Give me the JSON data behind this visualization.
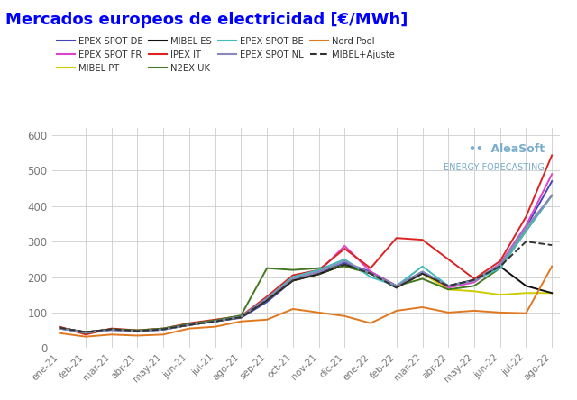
{
  "title": "Mercados europeos de electricidad [€/MWh]",
  "x_labels": [
    "ene-21",
    "feb-21",
    "mar-21",
    "abr-21",
    "may-21",
    "jun-21",
    "jul-21",
    "ago-21",
    "sep-21",
    "oct-21",
    "nov-21",
    "dic-21",
    "ene-22",
    "feb-22",
    "mar-22",
    "abr-22",
    "may-22",
    "jun-22",
    "jul-22",
    "ago-22"
  ],
  "ylim": [
    0,
    620
  ],
  "yticks": [
    0,
    100,
    200,
    300,
    400,
    500,
    600
  ],
  "series": {
    "EPEX SPOT DE": {
      "color": "#4444bb",
      "values": [
        55,
        45,
        52,
        48,
        52,
        65,
        75,
        85,
        130,
        190,
        210,
        240,
        215,
        175,
        215,
        175,
        190,
        235,
        340,
        470
      ]
    },
    "IPEX IT": {
      "color": "#dd2222",
      "values": [
        60,
        38,
        55,
        50,
        55,
        70,
        80,
        90,
        145,
        205,
        220,
        280,
        225,
        310,
        305,
        250,
        195,
        245,
        370,
        543
      ]
    },
    "Nord Pool": {
      "color": "#e07820",
      "values": [
        42,
        32,
        38,
        35,
        38,
        55,
        60,
        75,
        80,
        110,
        100,
        90,
        70,
        105,
        115,
        100,
        105,
        100,
        98,
        230
      ]
    },
    "EPEX SPOT FR": {
      "color": "#dd44cc",
      "values": [
        55,
        44,
        51,
        47,
        52,
        65,
        75,
        88,
        140,
        195,
        215,
        288,
        215,
        175,
        210,
        170,
        185,
        238,
        345,
        490
      ]
    },
    "N2EX UK": {
      "color": "#447722",
      "values": [
        57,
        42,
        53,
        50,
        55,
        68,
        78,
        92,
        225,
        220,
        225,
        230,
        210,
        175,
        195,
        165,
        175,
        225,
        330,
        430
      ]
    },
    "MIBEL+Ajuste": {
      "color": "#333333",
      "dashed": true,
      "values": [
        57,
        45,
        53,
        48,
        53,
        65,
        75,
        87,
        135,
        190,
        208,
        235,
        210,
        170,
        210,
        175,
        192,
        230,
        300,
        290
      ]
    },
    "MIBEL PT": {
      "color": "#cccc00",
      "values": [
        57,
        44,
        53,
        48,
        53,
        65,
        75,
        87,
        135,
        190,
        208,
        235,
        210,
        170,
        210,
        165,
        160,
        150,
        155,
        155
      ]
    },
    "EPEX SPOT BE": {
      "color": "#44bbbb",
      "values": [
        55,
        44,
        51,
        47,
        52,
        65,
        75,
        88,
        140,
        200,
        220,
        250,
        200,
        175,
        230,
        175,
        190,
        225,
        330,
        430
      ]
    },
    "MIBEL ES": {
      "color": "#111111",
      "values": [
        57,
        45,
        53,
        48,
        53,
        65,
        75,
        87,
        135,
        190,
        208,
        235,
        210,
        170,
        210,
        175,
        192,
        230,
        175,
        155
      ]
    },
    "EPEX SPOT NL": {
      "color": "#8888bb",
      "values": [
        55,
        44,
        51,
        47,
        52,
        65,
        75,
        88,
        140,
        195,
        215,
        245,
        210,
        175,
        215,
        175,
        190,
        235,
        340,
        430
      ]
    }
  },
  "legend_order": [
    "EPEX SPOT DE",
    "EPEX SPOT FR",
    "MIBEL PT",
    "MIBEL ES",
    "IPEX IT",
    "N2EX UK",
    "EPEX SPOT BE",
    "EPEX SPOT NL",
    "Nord Pool",
    "MIBEL+Ajuste"
  ],
  "watermark_line1": "•• AleaSoft",
  "watermark_line2": "ENERGY FORECASTING",
  "background_color": "#ffffff",
  "grid_color": "#cccccc",
  "title_color": "#0000ff",
  "title_fontsize": 13
}
